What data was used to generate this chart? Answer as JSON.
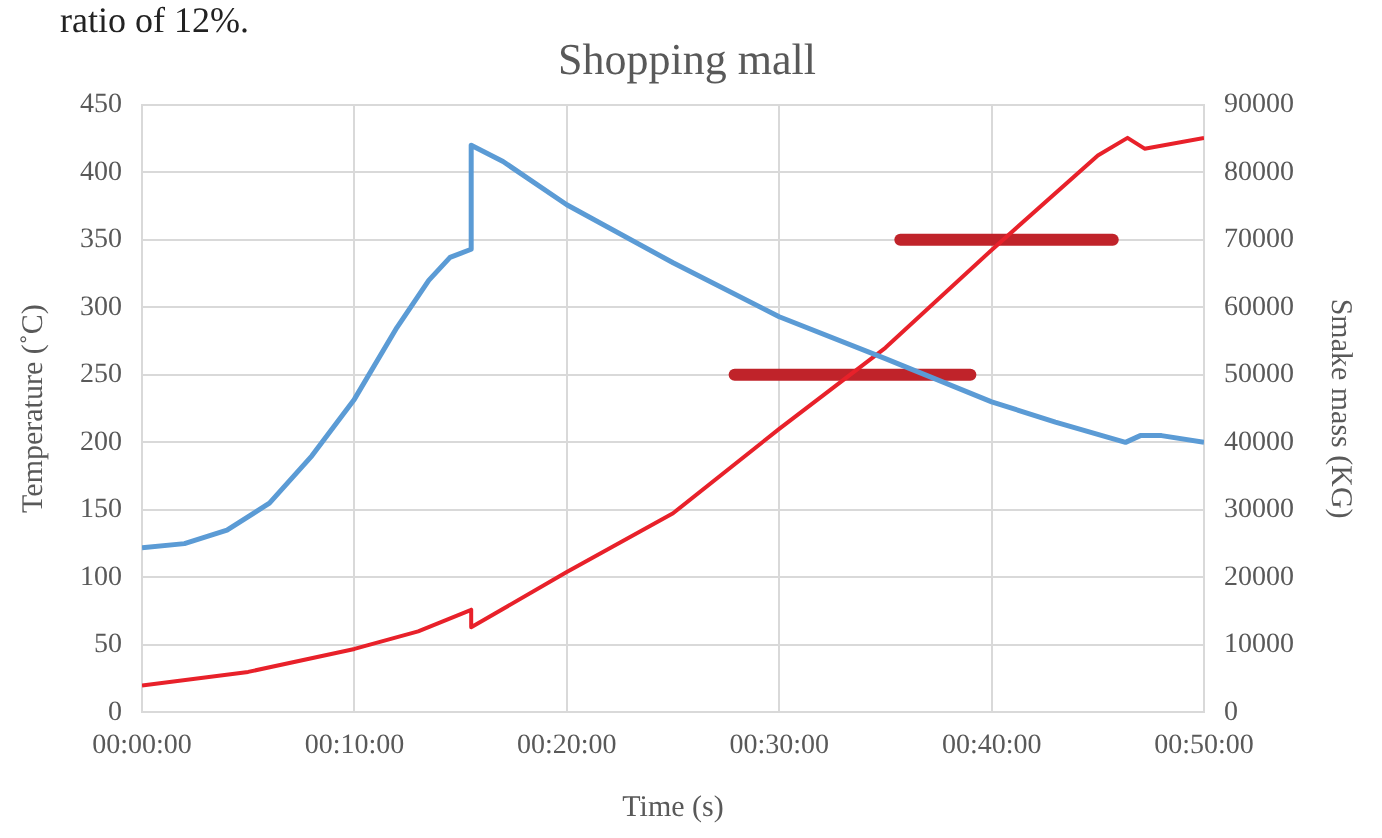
{
  "chart_data": {
    "type": "line",
    "title": "Shopping mall",
    "xlabel": "Time (s)",
    "ylabel": "Temperature (˚C)",
    "y2label": "Smake mass (KG)",
    "annotations": [
      "ratio of 12%."
    ],
    "xlim": [
      0,
      0.8333
    ],
    "xticks": [
      {
        "value": 0,
        "label": "00:00:00"
      },
      {
        "value": 0.1667,
        "label": "00:10:00"
      },
      {
        "value": 0.3333,
        "label": "00:20:00"
      },
      {
        "value": 0.5,
        "label": "00:30:00"
      },
      {
        "value": 0.6667,
        "label": "00:40:00"
      },
      {
        "value": 0.8333,
        "label": "00:50:00"
      }
    ],
    "ylim": [
      0,
      450
    ],
    "yticks": [
      0,
      50,
      100,
      150,
      200,
      250,
      300,
      350,
      400,
      450
    ],
    "y2lim": [
      0,
      90000
    ],
    "y2ticks": [
      0,
      10000,
      20000,
      30000,
      40000,
      50000,
      60000,
      70000,
      80000,
      90000
    ],
    "grid": true,
    "legend": false,
    "marker": "none",
    "line_style": "solid",
    "series": [
      {
        "color": "#5b9bd5",
        "x": [
          0,
          0.0333,
          0.0667,
          0.1,
          0.1333,
          0.1667,
          0.2,
          0.225,
          0.2417,
          0.2583,
          0.2583,
          0.2833,
          0.3333,
          0.4167,
          0.5,
          0.5833,
          0.6667,
          0.7167,
          0.7717,
          0.7833,
          0.8,
          0.8333
        ],
        "values": [
          122,
          125,
          135,
          155,
          190,
          232,
          285,
          320,
          337,
          343,
          420,
          408,
          376,
          333,
          293,
          262,
          230,
          215,
          200,
          205,
          205,
          200
        ]
      },
      {
        "color": "#e8212a",
        "axis": "y2",
        "x": [
          0,
          0.0833,
          0.1667,
          0.2167,
          0.2583,
          0.2583,
          0.3333,
          0.4167,
          0.5,
          0.5833,
          0.6667,
          0.75,
          0.7733,
          0.7867,
          0.8333
        ],
        "values": [
          4000,
          6000,
          9400,
          12000,
          15200,
          12600,
          20800,
          29500,
          42000,
          54000,
          68500,
          82500,
          85100,
          83500,
          85100
        ]
      },
      {
        "color": "#c0232a",
        "x": [
          0.465,
          0.65
        ],
        "values": [
          250,
          250
        ]
      },
      {
        "color": "#c0232a",
        "x": [
          0.595,
          0.7617
        ],
        "values": [
          350,
          350
        ]
      }
    ]
  }
}
